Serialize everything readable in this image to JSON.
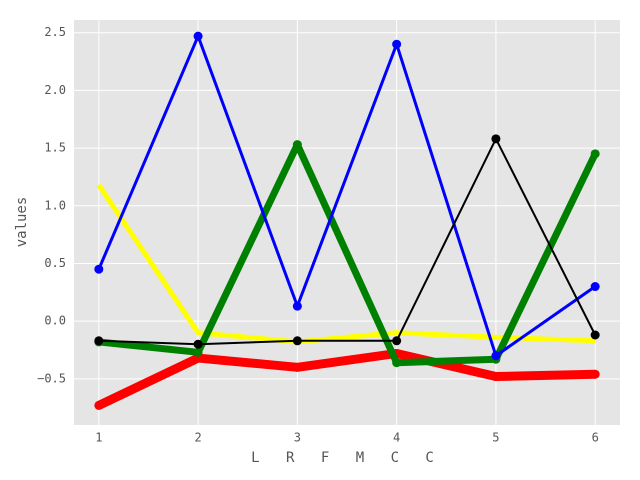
{
  "chart_data": {
    "type": "line",
    "xlabel": "L R F M C C",
    "ylabel": "values",
    "x": [
      1,
      2,
      3,
      4,
      5,
      6
    ],
    "series": [
      {
        "color": "#ffff00",
        "linewidth": 5,
        "marker": false,
        "values": [
          1.18,
          -0.1,
          -0.18,
          -0.1,
          -0.14,
          -0.17
        ]
      },
      {
        "color": "#ff0000",
        "linewidth": 9,
        "marker": true,
        "values": [
          -0.73,
          -0.32,
          -0.4,
          -0.28,
          -0.48,
          -0.46
        ]
      },
      {
        "color": "#008000",
        "linewidth": 7,
        "marker": true,
        "values": [
          -0.18,
          -0.27,
          1.53,
          -0.36,
          -0.33,
          1.45
        ]
      },
      {
        "color": "#0000ff",
        "linewidth": 3,
        "marker": true,
        "values": [
          0.45,
          2.47,
          0.13,
          2.4,
          -0.3,
          0.3
        ]
      },
      {
        "color": "#000000",
        "linewidth": 2,
        "marker": true,
        "values": [
          -0.17,
          -0.2,
          -0.17,
          -0.17,
          1.58,
          -0.12
        ]
      }
    ],
    "xlim": [
      0.75,
      6.25
    ],
    "xticks": [
      1,
      2,
      3,
      4,
      5,
      6
    ],
    "ylim": [
      -0.9,
      2.61
    ],
    "yticks": [
      {
        "value": -0.5,
        "label": "−0.5"
      },
      {
        "value": 0,
        "label": "0.0"
      },
      0.5,
      {
        "value": 1,
        "label": "1.0"
      },
      1.5,
      {
        "value": 2,
        "label": "2.0"
      },
      2.5
    ],
    "grid": true
  }
}
